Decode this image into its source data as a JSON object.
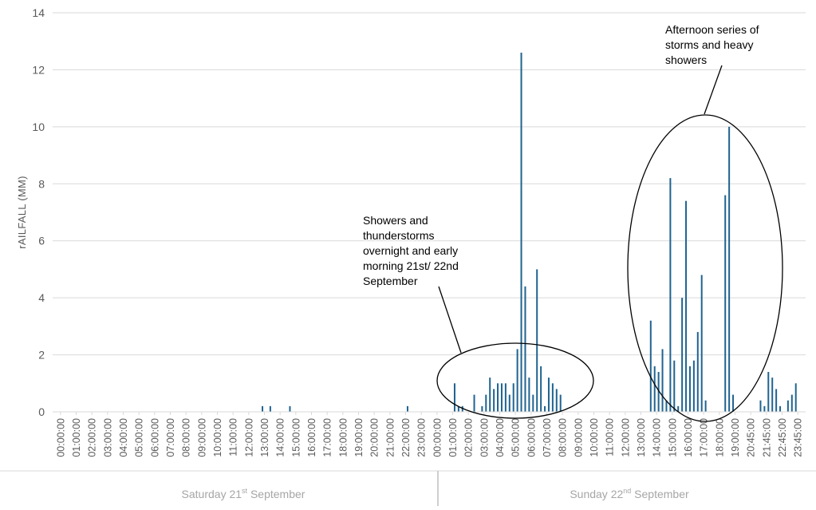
{
  "chart_data": {
    "type": "bar",
    "title": "",
    "ylabel": "rAILFALL (MM)",
    "ylim": [
      0,
      14
    ],
    "yticks": [
      0,
      2,
      4,
      6,
      8,
      10,
      12,
      14
    ],
    "grid": "horizontal",
    "bar_color": "#1f6391",
    "interval_minutes": 15,
    "tick_labels": [
      "00:00:00",
      "01:00:00",
      "02:00:00",
      "03:00:00",
      "04:00:00",
      "05:00:00",
      "06:00:00",
      "07:00:00",
      "08:00:00",
      "09:00:00",
      "10:00:00",
      "11:00:00",
      "12:00:00",
      "13:00:00",
      "14:00:00",
      "15:00:00",
      "16:00:00",
      "17:00:00",
      "18:00:00",
      "19:00:00",
      "20:00:00",
      "21:00:00",
      "22:00:00",
      "23:00:00",
      "00:00:00",
      "01:00:00",
      "02:00:00",
      "03:00:00",
      "04:00:00",
      "05:00:00",
      "06:00:00",
      "07:00:00",
      "08:00:00",
      "09:00:00",
      "10:00:00",
      "11:00:00",
      "12:00:00",
      "13:00:00",
      "14:00:00",
      "15:00:00",
      "16:00:00",
      "17:00:00",
      "18:00:00",
      "19:00:00",
      "20:45:00",
      "21:45:00",
      "22:45:00",
      "23:45:00"
    ],
    "days": [
      {
        "main": "Saturday 21",
        "sup": "st",
        "rest": " September"
      },
      {
        "main": "Sunday 22",
        "sup": "nd",
        "rest": " September"
      }
    ],
    "points": [
      {
        "x": "Sat 13:15",
        "y": 0.2
      },
      {
        "x": "Sat 13:45",
        "y": 0.2
      },
      {
        "x": "Sat 15:00",
        "y": 0.2
      },
      {
        "x": "Sat 22:30",
        "y": 0.2
      },
      {
        "x": "Sun 01:30",
        "y": 1.0
      },
      {
        "x": "Sun 01:45",
        "y": 0.2
      },
      {
        "x": "Sun 02:00",
        "y": 0.2
      },
      {
        "x": "Sun 02:45",
        "y": 0.6
      },
      {
        "x": "Sun 03:15",
        "y": 0.2
      },
      {
        "x": "Sun 03:30",
        "y": 0.6
      },
      {
        "x": "Sun 03:45",
        "y": 1.2
      },
      {
        "x": "Sun 04:00",
        "y": 0.8
      },
      {
        "x": "Sun 04:15",
        "y": 1.0
      },
      {
        "x": "Sun 04:30",
        "y": 1.0
      },
      {
        "x": "Sun 04:45",
        "y": 1.0
      },
      {
        "x": "Sun 05:00",
        "y": 0.6
      },
      {
        "x": "Sun 05:15",
        "y": 1.0
      },
      {
        "x": "Sun 05:30",
        "y": 2.2
      },
      {
        "x": "Sun 05:45",
        "y": 12.6
      },
      {
        "x": "Sun 06:00",
        "y": 4.4
      },
      {
        "x": "Sun 06:15",
        "y": 1.2
      },
      {
        "x": "Sun 06:30",
        "y": 0.6
      },
      {
        "x": "Sun 06:45",
        "y": 5.0
      },
      {
        "x": "Sun 07:00",
        "y": 1.6
      },
      {
        "x": "Sun 07:15",
        "y": 0.2
      },
      {
        "x": "Sun 07:30",
        "y": 1.2
      },
      {
        "x": "Sun 07:45",
        "y": 1.0
      },
      {
        "x": "Sun 08:00",
        "y": 0.8
      },
      {
        "x": "Sun 08:15",
        "y": 0.6
      },
      {
        "x": "Sun 14:00",
        "y": 3.2
      },
      {
        "x": "Sun 14:15",
        "y": 1.6
      },
      {
        "x": "Sun 14:30",
        "y": 1.4
      },
      {
        "x": "Sun 14:45",
        "y": 2.2
      },
      {
        "x": "Sun 15:00",
        "y": 0.4
      },
      {
        "x": "Sun 15:15",
        "y": 8.2
      },
      {
        "x": "Sun 15:30",
        "y": 1.8
      },
      {
        "x": "Sun 15:45",
        "y": 0.2
      },
      {
        "x": "Sun 16:00",
        "y": 4.0
      },
      {
        "x": "Sun 16:15",
        "y": 7.4
      },
      {
        "x": "Sun 16:30",
        "y": 1.6
      },
      {
        "x": "Sun 16:45",
        "y": 1.8
      },
      {
        "x": "Sun 17:00",
        "y": 2.8
      },
      {
        "x": "Sun 17:15",
        "y": 4.8
      },
      {
        "x": "Sun 17:30",
        "y": 0.4
      },
      {
        "x": "Sun 18:45",
        "y": 7.6
      },
      {
        "x": "Sun 19:00",
        "y": 10.0
      },
      {
        "x": "Sun 19:15",
        "y": 0.6
      },
      {
        "x": "Sun 21:00",
        "y": 0.4
      },
      {
        "x": "Sun 21:15",
        "y": 0.2
      },
      {
        "x": "Sun 21:30",
        "y": 1.4
      },
      {
        "x": "Sun 21:45",
        "y": 1.2
      },
      {
        "x": "Sun 22:00",
        "y": 0.8
      },
      {
        "x": "Sun 22:15",
        "y": 0.2
      },
      {
        "x": "Sun 22:45",
        "y": 0.4
      },
      {
        "x": "Sun 23:00",
        "y": 0.6
      },
      {
        "x": "Sun 23:15",
        "y": 1.0
      }
    ],
    "annotations": [
      {
        "lines": [
          "Showers and",
          "thunderstorms",
          "overnight and early",
          "morning 21st/ 22nd",
          "September"
        ],
        "region": "overnight-early-morning"
      },
      {
        "lines": [
          "Afternoon series of",
          "storms and heavy",
          "showers"
        ],
        "region": "afternoon"
      }
    ]
  }
}
